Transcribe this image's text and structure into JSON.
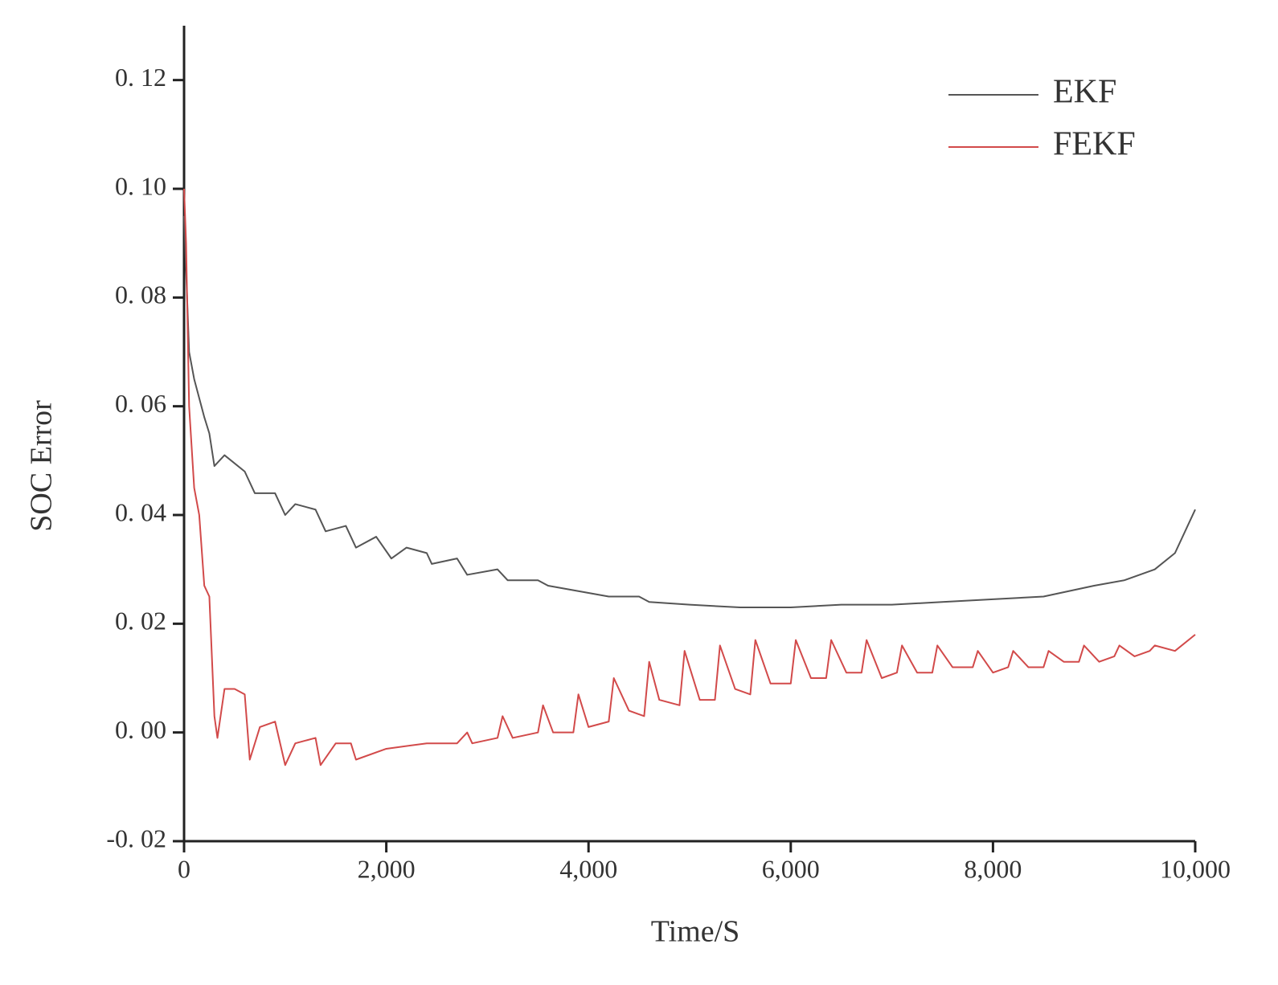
{
  "chart_data": {
    "type": "line",
    "x_label": "Time/S",
    "y_label": "SOC Error",
    "xlim": [
      0,
      10000
    ],
    "xticks": [
      0,
      {
        "value": 2000,
        "label": "2,000"
      },
      {
        "value": 4000,
        "label": "4,000"
      },
      {
        "value": 6000,
        "label": "6,000"
      },
      {
        "value": 8000,
        "label": "8,000"
      },
      {
        "value": 10000,
        "label": "10,000"
      }
    ],
    "ylim": [
      -0.02,
      0.13
    ],
    "yticks": [
      {
        "value": -0.02,
        "label": "-0. 02"
      },
      {
        "value": 0,
        "label": "0. 00"
      },
      {
        "value": 0.02,
        "label": "0. 02"
      },
      {
        "value": 0.04,
        "label": "0. 04"
      },
      {
        "value": 0.06,
        "label": "0. 06"
      },
      {
        "value": 0.08,
        "label": "0. 08"
      },
      {
        "value": 0.1,
        "label": "0. 10"
      },
      {
        "value": 0.12,
        "label": "0. 12"
      }
    ],
    "legend": "upper-right",
    "series": [
      {
        "name": "EKF",
        "color": "#555555",
        "x": [
          0,
          50,
          100,
          200,
          250,
          300,
          400,
          600,
          700,
          900,
          1000,
          1100,
          1300,
          1400,
          1600,
          1700,
          1900,
          2050,
          2200,
          2400,
          2450,
          2700,
          2800,
          3100,
          3200,
          3500,
          3600,
          3900,
          4200,
          4500,
          4600,
          5000,
          5500,
          6000,
          6500,
          7000,
          7500,
          8000,
          8500,
          9000,
          9300,
          9600,
          9800,
          10000
        ],
        "values": [
          0.095,
          0.07,
          0.065,
          0.058,
          0.055,
          0.049,
          0.051,
          0.048,
          0.044,
          0.044,
          0.04,
          0.042,
          0.041,
          0.037,
          0.038,
          0.034,
          0.036,
          0.032,
          0.034,
          0.033,
          0.031,
          0.032,
          0.029,
          0.03,
          0.028,
          0.028,
          0.027,
          0.026,
          0.025,
          0.025,
          0.024,
          0.0235,
          0.023,
          0.023,
          0.0235,
          0.0235,
          0.024,
          0.0245,
          0.025,
          0.027,
          0.028,
          0.03,
          0.033,
          0.041
        ]
      },
      {
        "name": "FEKF",
        "color": "#d24a4a",
        "x": [
          0,
          20,
          50,
          100,
          150,
          200,
          250,
          300,
          330,
          400,
          500,
          600,
          650,
          750,
          900,
          1000,
          1100,
          1300,
          1350,
          1500,
          1650,
          1700,
          2000,
          2400,
          2700,
          2800,
          2850,
          3100,
          3150,
          3250,
          3500,
          3550,
          3650,
          3850,
          3900,
          4000,
          4200,
          4250,
          4400,
          4550,
          4600,
          4700,
          4900,
          4950,
          5100,
          5250,
          5300,
          5450,
          5600,
          5650,
          5800,
          6000,
          6050,
          6200,
          6350,
          6400,
          6550,
          6700,
          6750,
          6900,
          7050,
          7100,
          7250,
          7400,
          7450,
          7600,
          7800,
          7850,
          8000,
          8150,
          8200,
          8350,
          8500,
          8550,
          8700,
          8850,
          8900,
          9050,
          9200,
          9250,
          9400,
          9550,
          9600,
          9800,
          10000
        ],
        "values": [
          0.1,
          0.09,
          0.06,
          0.045,
          0.04,
          0.027,
          0.025,
          0.003,
          -0.001,
          0.008,
          0.008,
          0.007,
          -0.005,
          0.001,
          0.002,
          -0.006,
          -0.002,
          -0.001,
          -0.006,
          -0.002,
          -0.002,
          -0.005,
          -0.003,
          -0.002,
          -0.002,
          0.0,
          -0.002,
          -0.001,
          0.003,
          -0.001,
          0.0,
          0.005,
          0.0,
          0.0,
          0.007,
          0.001,
          0.002,
          0.01,
          0.004,
          0.003,
          0.013,
          0.006,
          0.005,
          0.015,
          0.006,
          0.006,
          0.016,
          0.008,
          0.007,
          0.017,
          0.009,
          0.009,
          0.017,
          0.01,
          0.01,
          0.017,
          0.011,
          0.011,
          0.017,
          0.01,
          0.011,
          0.016,
          0.011,
          0.011,
          0.016,
          0.012,
          0.012,
          0.015,
          0.011,
          0.012,
          0.015,
          0.012,
          0.012,
          0.015,
          0.013,
          0.013,
          0.016,
          0.013,
          0.014,
          0.016,
          0.014,
          0.015,
          0.016,
          0.015,
          0.018
        ]
      }
    ]
  }
}
